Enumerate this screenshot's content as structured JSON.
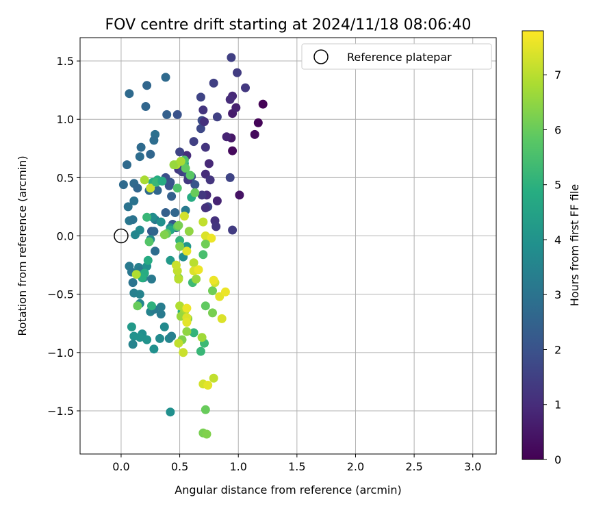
{
  "chart_data": {
    "type": "scatter",
    "title": "FOV centre drift starting at 2024/11/18 08:06:40",
    "xlabel": "Angular distance from reference (arcmin)",
    "ylabel": "Rotation from reference (arcmin)",
    "xlim": [
      -0.35,
      3.2
    ],
    "ylim": [
      -1.87,
      1.7
    ],
    "xticks": [
      0.0,
      0.5,
      1.0,
      1.5,
      2.0,
      2.5,
      3.0
    ],
    "xtick_labels": [
      "0.0",
      "0.5",
      "1.0",
      "1.5",
      "2.0",
      "2.5",
      "3.0"
    ],
    "yticks": [
      -1.5,
      -1.0,
      -0.5,
      0.0,
      0.5,
      1.0,
      1.5
    ],
    "ytick_labels": [
      "−1.5",
      "−1.0",
      "−0.5",
      "0.0",
      "0.5",
      "1.0",
      "1.5"
    ],
    "grid": true,
    "legend": {
      "placement": "top-right",
      "entries": [
        {
          "label": "Reference platepar",
          "marker": "open-circle"
        }
      ]
    },
    "reference_point": {
      "x": 0.0,
      "y": 0.0
    },
    "colorbar": {
      "label": "Hours from first FF file",
      "colormap": "viridis",
      "range": [
        0,
        7.8
      ],
      "ticks": [
        0,
        1,
        2,
        3,
        4,
        5,
        6,
        7
      ],
      "tick_labels": [
        "0",
        "1",
        "2",
        "3",
        "4",
        "5",
        "6",
        "7"
      ]
    },
    "points": [
      [
        1.21,
        1.13,
        0.05
      ],
      [
        1.17,
        0.97,
        0.1
      ],
      [
        1.14,
        0.87,
        0.2
      ],
      [
        1.01,
        0.35,
        0.4
      ],
      [
        0.95,
        0.73,
        0.2
      ],
      [
        0.94,
        0.84,
        0.5
      ],
      [
        0.95,
        1.05,
        0.6
      ],
      [
        0.98,
        1.1,
        0.7
      ],
      [
        0.95,
        1.2,
        0.9
      ],
      [
        0.93,
        1.17,
        1.0
      ],
      [
        1.06,
        1.27,
        1.3
      ],
      [
        0.99,
        1.4,
        1.4
      ],
      [
        0.94,
        1.53,
        1.5
      ],
      [
        0.9,
        0.85,
        0.8
      ],
      [
        0.82,
        0.3,
        0.8
      ],
      [
        0.82,
        1.02,
        1.5
      ],
      [
        0.79,
        1.31,
        1.5
      ],
      [
        0.7,
        1.08,
        1.2
      ],
      [
        0.68,
        1.19,
        1.6
      ],
      [
        0.69,
        0.99,
        1.8
      ],
      [
        0.68,
        0.92,
        1.7
      ],
      [
        0.71,
        0.98,
        1.1
      ],
      [
        0.72,
        0.76,
        1.2
      ],
      [
        0.75,
        0.62,
        0.9
      ],
      [
        0.72,
        0.53,
        1.0
      ],
      [
        0.76,
        0.48,
        1.2
      ],
      [
        0.73,
        0.35,
        1.0
      ],
      [
        0.69,
        0.35,
        1.3
      ],
      [
        0.74,
        0.25,
        1.6
      ],
      [
        0.72,
        0.24,
        1.1
      ],
      [
        0.8,
        0.13,
        1.1
      ],
      [
        0.81,
        0.08,
        1.2
      ],
      [
        0.93,
        0.5,
        1.6
      ],
      [
        0.95,
        0.05,
        1.4
      ],
      [
        0.62,
        0.81,
        1.5
      ],
      [
        0.56,
        0.69,
        1.0
      ],
      [
        0.5,
        0.72,
        1.6
      ],
      [
        0.49,
        0.57,
        1.3
      ],
      [
        0.52,
        0.55,
        1.5
      ],
      [
        0.57,
        0.52,
        1.7
      ],
      [
        0.6,
        0.51,
        1.9
      ],
      [
        0.63,
        0.44,
        2.1
      ],
      [
        0.59,
        0.49,
        2.0
      ],
      [
        0.57,
        0.48,
        1.3
      ],
      [
        0.42,
        0.46,
        2.1
      ],
      [
        0.41,
        0.43,
        2.0
      ],
      [
        0.38,
        0.5,
        1.9
      ],
      [
        0.48,
        1.04,
        2.0
      ],
      [
        0.39,
        1.04,
        2.4
      ],
      [
        0.38,
        1.36,
        2.7
      ],
      [
        0.22,
        1.29,
        2.6
      ],
      [
        0.07,
        1.22,
        2.7
      ],
      [
        0.21,
        1.11,
        2.6
      ],
      [
        0.29,
        0.87,
        2.9
      ],
      [
        0.28,
        0.82,
        2.8
      ],
      [
        0.17,
        0.76,
        2.7
      ],
      [
        0.16,
        0.68,
        2.8
      ],
      [
        0.25,
        0.7,
        2.6
      ],
      [
        0.05,
        0.61,
        2.7
      ],
      [
        0.02,
        0.44,
        2.7
      ],
      [
        0.11,
        0.45,
        2.7
      ],
      [
        0.14,
        0.41,
        2.6
      ],
      [
        0.24,
        0.39,
        2.7
      ],
      [
        0.31,
        0.39,
        2.6
      ],
      [
        0.43,
        0.34,
        2.4
      ],
      [
        0.46,
        0.2,
        2.6
      ],
      [
        0.47,
        0.07,
        2.8
      ],
      [
        0.38,
        0.2,
        2.4
      ],
      [
        0.44,
        0.1,
        2.2
      ],
      [
        0.06,
        0.25,
        3.0
      ],
      [
        0.11,
        0.3,
        3.0
      ],
      [
        0.07,
        0.13,
        3.1
      ],
      [
        0.1,
        0.14,
        3.0
      ],
      [
        0.29,
        0.14,
        3.1
      ],
      [
        0.26,
        0.04,
        2.2
      ],
      [
        0.28,
        0.04,
        2.6
      ],
      [
        0.29,
        -0.13,
        2.8
      ],
      [
        0.42,
        0.07,
        3.7
      ],
      [
        0.55,
        0.22,
        3.2
      ],
      [
        0.16,
        0.05,
        3.7
      ],
      [
        0.12,
        0.01,
        3.6
      ],
      [
        0.27,
        0.16,
        3.8
      ],
      [
        0.34,
        0.12,
        3.9
      ],
      [
        0.25,
        -0.03,
        3.7
      ],
      [
        0.07,
        -0.26,
        3.2
      ],
      [
        0.09,
        -0.31,
        3.1
      ],
      [
        0.1,
        -0.4,
        3.0
      ],
      [
        0.15,
        -0.27,
        3.4
      ],
      [
        0.16,
        -0.3,
        3.2
      ],
      [
        0.19,
        -0.36,
        3.3
      ],
      [
        0.26,
        -0.37,
        3.2
      ],
      [
        0.22,
        -0.26,
        3.9
      ],
      [
        0.11,
        -0.49,
        3.4
      ],
      [
        0.16,
        -0.5,
        3.5
      ],
      [
        0.16,
        -0.58,
        3.6
      ],
      [
        0.25,
        -0.65,
        3.5
      ],
      [
        0.28,
        -0.63,
        3.2
      ],
      [
        0.34,
        -0.61,
        3.3
      ],
      [
        0.34,
        -0.67,
        3.2
      ],
      [
        0.09,
        -0.78,
        4.2
      ],
      [
        0.11,
        -0.86,
        4.0
      ],
      [
        0.18,
        -0.84,
        3.9
      ],
      [
        0.16,
        -0.87,
        4.0
      ],
      [
        0.22,
        -0.89,
        4.0
      ],
      [
        0.1,
        -0.93,
        3.5
      ],
      [
        0.33,
        -0.88,
        3.7
      ],
      [
        0.37,
        -0.78,
        3.7
      ],
      [
        0.41,
        -0.88,
        3.6
      ],
      [
        0.43,
        -0.86,
        3.4
      ],
      [
        0.28,
        -0.97,
        3.9
      ],
      [
        0.42,
        -1.51,
        3.9
      ],
      [
        0.53,
        -0.18,
        3.8
      ],
      [
        0.56,
        -0.09,
        4.1
      ],
      [
        0.42,
        -0.21,
        4.2
      ],
      [
        0.6,
        0.33,
        4.8
      ],
      [
        0.54,
        0.62,
        4.5
      ],
      [
        0.42,
        0.05,
        4.7
      ],
      [
        0.31,
        0.48,
        4.8
      ],
      [
        0.27,
        0.46,
        4.9
      ],
      [
        0.23,
        -0.21,
        4.8
      ],
      [
        0.2,
        -0.32,
        4.8
      ],
      [
        0.18,
        -0.36,
        4.9
      ],
      [
        0.26,
        -0.6,
        5.0
      ],
      [
        0.22,
        0.16,
        5.2
      ],
      [
        0.5,
        -0.04,
        5.1
      ],
      [
        0.61,
        -0.4,
        5.3
      ],
      [
        0.62,
        -0.83,
        5.1
      ],
      [
        0.68,
        -0.99,
        5.2
      ],
      [
        0.71,
        -0.92,
        5.3
      ],
      [
        0.52,
        -0.65,
        4.9
      ],
      [
        0.7,
        -0.16,
        5.5
      ],
      [
        0.48,
        0.41,
        5.6
      ],
      [
        0.48,
        0.08,
        5.7
      ],
      [
        0.54,
        0.65,
        5.6
      ],
      [
        0.59,
        0.52,
        5.8
      ],
      [
        0.55,
        0.58,
        5.9
      ],
      [
        0.39,
        0.02,
        5.9
      ],
      [
        0.63,
        0.37,
        6.0
      ],
      [
        0.72,
        -0.6,
        5.9
      ],
      [
        0.78,
        -0.47,
        6.1
      ],
      [
        0.78,
        -0.66,
        6.2
      ],
      [
        0.72,
        -1.49,
        6.0
      ],
      [
        0.7,
        -1.69,
        6.2
      ],
      [
        0.73,
        -1.7,
        6.3
      ],
      [
        0.52,
        -0.89,
        6.3
      ],
      [
        0.49,
        -0.36,
        6.2
      ],
      [
        0.57,
        -0.71,
        6.4
      ],
      [
        0.56,
        -0.82,
        6.5
      ],
      [
        0.51,
        -0.69,
        6.6
      ],
      [
        0.69,
        -0.87,
        6.7
      ],
      [
        0.64,
        -0.37,
        6.6
      ],
      [
        0.54,
        -0.65,
        6.6
      ],
      [
        0.55,
        -0.63,
        6.8
      ],
      [
        0.5,
        -0.6,
        6.9
      ],
      [
        0.49,
        -0.37,
        7.0
      ],
      [
        0.48,
        -0.3,
        7.1
      ],
      [
        0.47,
        -0.25,
        7.2
      ],
      [
        0.49,
        -0.92,
        7.1
      ],
      [
        0.53,
        -1.0,
        7.2
      ],
      [
        0.56,
        -0.7,
        7.4
      ],
      [
        0.56,
        -0.74,
        7.5
      ],
      [
        0.56,
        -0.62,
        7.6
      ],
      [
        0.56,
        -0.13,
        7.5
      ],
      [
        0.54,
        0.17,
        7.3
      ],
      [
        0.58,
        0.04,
        6.5
      ],
      [
        0.47,
        0.61,
        6.9
      ],
      [
        0.45,
        0.61,
        6.6
      ],
      [
        0.51,
        0.64,
        6.8
      ],
      [
        0.72,
        0.0,
        7.4
      ],
      [
        0.77,
        -0.02,
        7.6
      ],
      [
        0.7,
        0.12,
        7.1
      ],
      [
        0.72,
        -0.07,
        6.1
      ],
      [
        0.62,
        -0.23,
        7.0
      ],
      [
        0.62,
        -0.3,
        7.4
      ],
      [
        0.66,
        -0.29,
        7.6
      ],
      [
        0.8,
        -0.4,
        7.3
      ],
      [
        0.79,
        -0.38,
        7.6
      ],
      [
        0.84,
        -0.52,
        7.5
      ],
      [
        0.89,
        -0.48,
        7.6
      ],
      [
        0.86,
        -0.71,
        7.4
      ],
      [
        0.79,
        -1.22,
        7.1
      ],
      [
        0.7,
        -1.27,
        7.3
      ],
      [
        0.74,
        -1.28,
        7.5
      ],
      [
        0.14,
        -0.6,
        6.0
      ],
      [
        0.13,
        -0.33,
        6.9
      ],
      [
        0.2,
        0.48,
        6.8
      ],
      [
        0.25,
        0.41,
        7.2
      ],
      [
        0.3,
        0.46,
        5.2
      ],
      [
        0.35,
        0.47,
        4.8
      ],
      [
        0.49,
        0.09,
        6.2
      ],
      [
        0.5,
        -0.09,
        6.3
      ],
      [
        0.37,
        0.01,
        6.3
      ],
      [
        0.24,
        -0.05,
        5.7
      ]
    ]
  }
}
